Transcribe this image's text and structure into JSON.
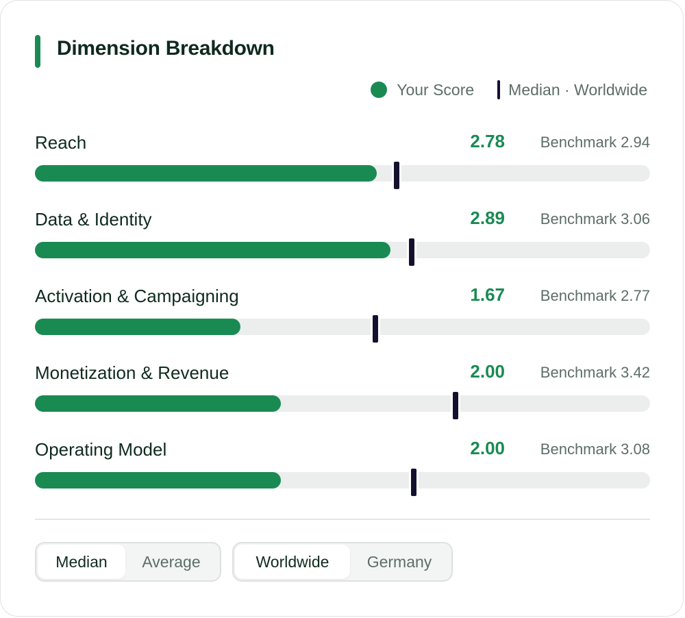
{
  "panel": {
    "title": "Dimension Breakdown"
  },
  "legend": {
    "score_label": "Your Score",
    "median_label": "Median · Worldwide"
  },
  "colors": {
    "accent": "#1a8a53",
    "marker": "#15102e",
    "track": "#eceeed"
  },
  "chart_data": {
    "type": "bar",
    "orientation": "horizontal",
    "xlim": [
      0,
      5
    ],
    "categories": [
      "Reach",
      "Data & Identity",
      "Activation & Campaigning",
      "Monetization & Revenue",
      "Operating Model"
    ],
    "series": [
      {
        "name": "Your Score",
        "values": [
          2.78,
          2.89,
          1.67,
          2.0,
          2.0
        ]
      },
      {
        "name": "Median · Worldwide",
        "values": [
          2.94,
          3.06,
          2.77,
          3.42,
          3.08
        ]
      }
    ],
    "score_labels": [
      "2.78",
      "2.89",
      "1.67",
      "2.00",
      "2.00"
    ],
    "benchmark_labels": [
      "Benchmark 2.94",
      "Benchmark 3.06",
      "Benchmark 2.77",
      "Benchmark 3.42",
      "Benchmark 3.08"
    ],
    "legend_placement": "top-right"
  },
  "controls": {
    "statistic": {
      "options": [
        "Median",
        "Average"
      ],
      "selected": "Median"
    },
    "region": {
      "options": [
        "Worldwide",
        "Germany"
      ],
      "selected": "Worldwide"
    }
  }
}
